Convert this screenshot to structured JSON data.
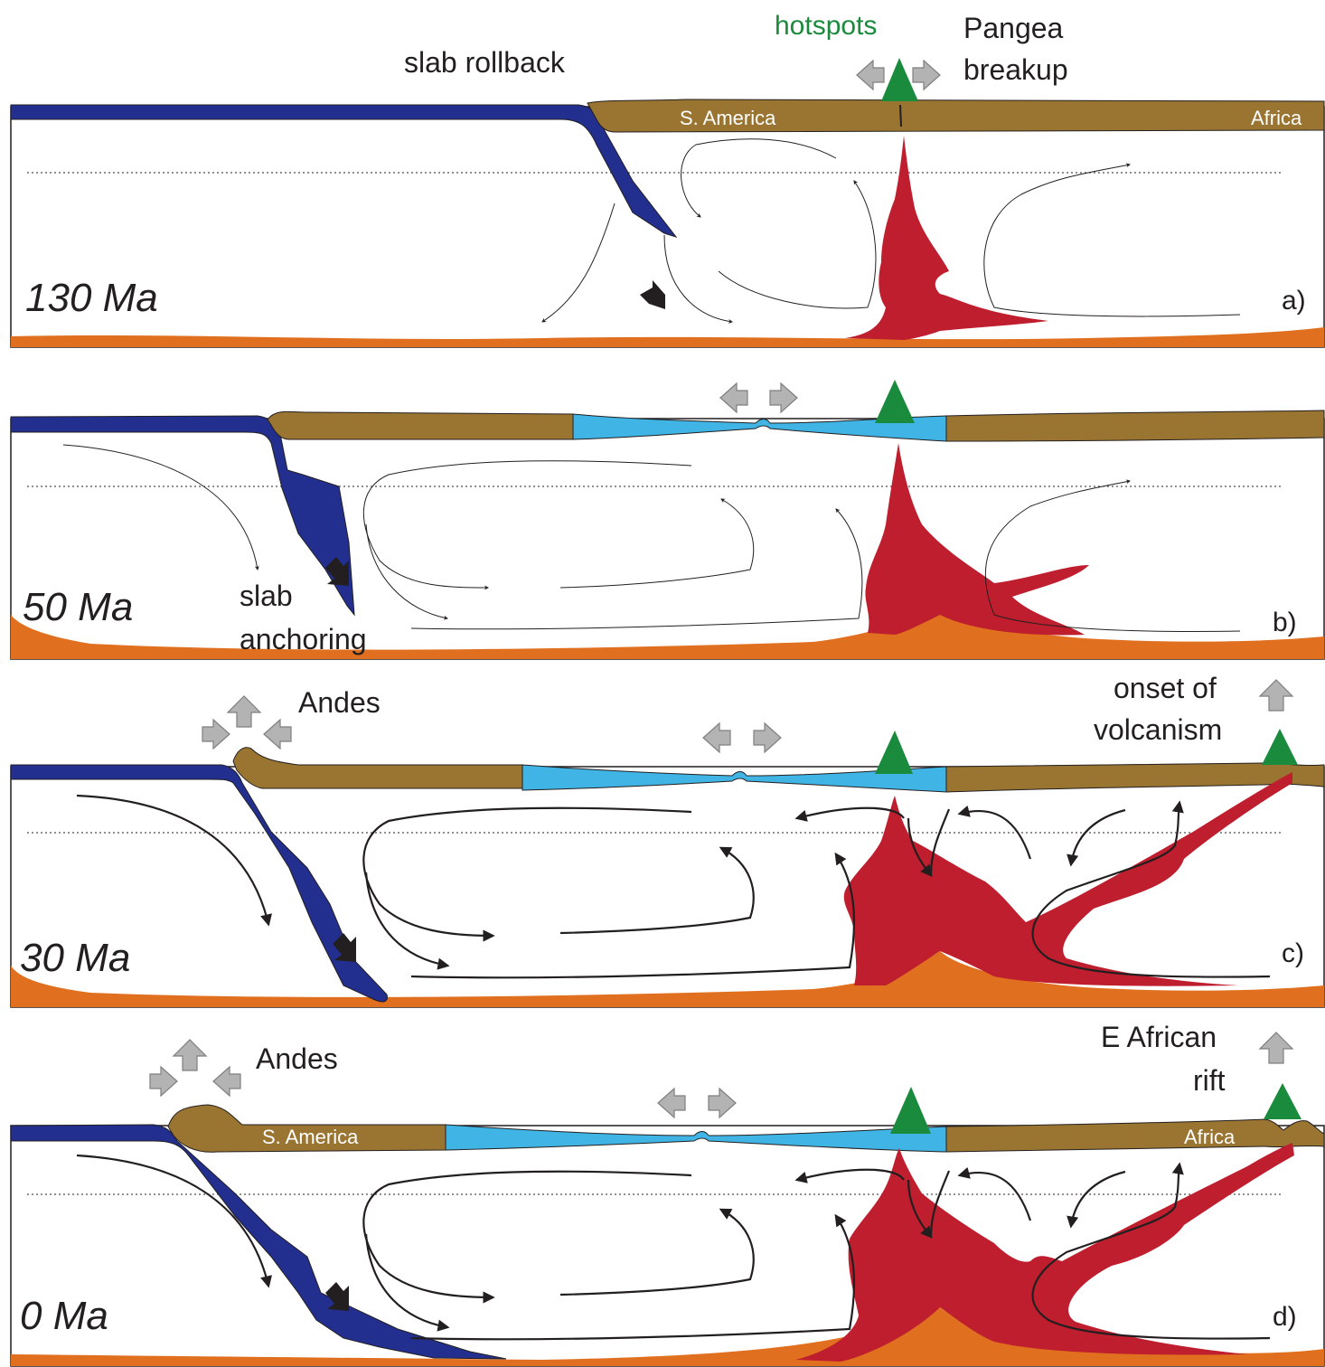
{
  "colors": {
    "oceanic_slab": "#232f8e",
    "continent": "#9a7431",
    "new_ocean": "#3fb4e5",
    "plume": "#be1e2d",
    "core_boundary": "#e07020",
    "volcano": "#1a8a3c",
    "motion_arrow": "#b3b3b3",
    "text": "#231f20"
  },
  "panels": [
    {
      "id": "a",
      "age": "130 Ma",
      "letter": "a)",
      "labels": {
        "slab_rollback": "slab rollback",
        "hotspots": "hotspots",
        "pangea_line1": "Pangea",
        "pangea_line2": "breakup",
        "s_america": "S. America",
        "africa": "Africa"
      }
    },
    {
      "id": "b",
      "age": "50 Ma",
      "letter": "b)",
      "labels": {
        "slab_line1": "slab",
        "slab_line2": "anchoring"
      }
    },
    {
      "id": "c",
      "age": "30 Ma",
      "letter": "c)",
      "labels": {
        "andes": "Andes",
        "onset_line1": "onset of",
        "onset_line2": "volcanism"
      }
    },
    {
      "id": "d",
      "age": "0 Ma",
      "letter": "d)",
      "labels": {
        "andes": "Andes",
        "rift_line1": "E African",
        "rift_line2": "rift",
        "s_america": "S. America",
        "africa": "Africa"
      }
    }
  ]
}
